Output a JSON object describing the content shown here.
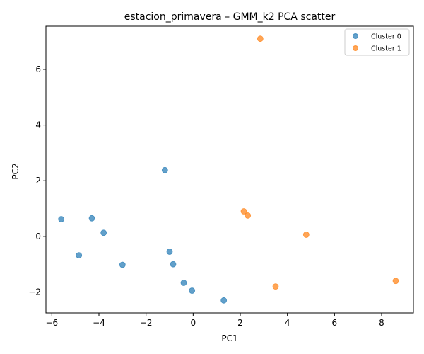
{
  "chart_data": {
    "type": "scatter",
    "title": "estacion_primavera – GMM_k2 PCA scatter",
    "xlabel": "PC1",
    "ylabel": "PC2",
    "xlim": [
      -6.25,
      9.35
    ],
    "ylim": [
      -2.75,
      7.55
    ],
    "xticks": [
      -6,
      -4,
      -2,
      0,
      2,
      4,
      6,
      8
    ],
    "yticks": [
      -2,
      0,
      2,
      4,
      6
    ],
    "grid": false,
    "legend_position": "top-right",
    "series": [
      {
        "name": "Cluster 0",
        "color": "#1f77b4",
        "points": [
          {
            "x": -5.6,
            "y": 0.62
          },
          {
            "x": -4.3,
            "y": 0.65
          },
          {
            "x": -3.8,
            "y": 0.13
          },
          {
            "x": -4.85,
            "y": -0.68
          },
          {
            "x": -3.0,
            "y": -1.02
          },
          {
            "x": -1.2,
            "y": 2.38
          },
          {
            "x": -1.0,
            "y": -0.55
          },
          {
            "x": -0.85,
            "y": -1.0
          },
          {
            "x": -0.4,
            "y": -1.67
          },
          {
            "x": -0.05,
            "y": -1.95
          },
          {
            "x": 1.3,
            "y": -2.3
          }
        ]
      },
      {
        "name": "Cluster 1",
        "color": "#ff7f0e",
        "points": [
          {
            "x": 2.85,
            "y": 7.1
          },
          {
            "x": 2.15,
            "y": 0.9
          },
          {
            "x": 2.32,
            "y": 0.75
          },
          {
            "x": 4.8,
            "y": 0.06
          },
          {
            "x": 3.5,
            "y": -1.8
          },
          {
            "x": 8.6,
            "y": -1.6
          }
        ]
      }
    ]
  }
}
